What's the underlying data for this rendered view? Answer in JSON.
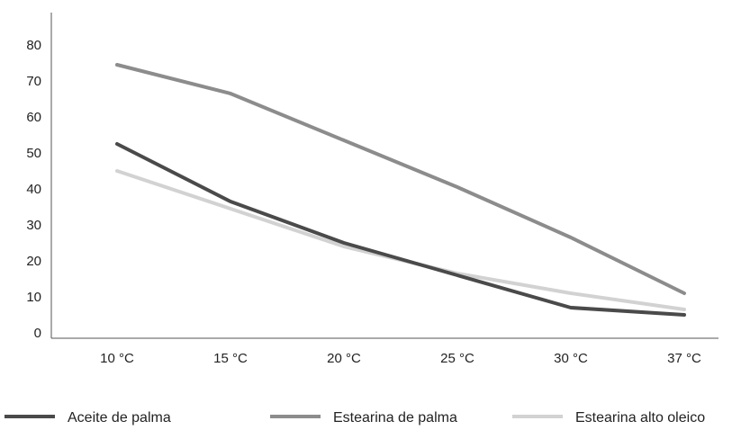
{
  "chart_data": {
    "type": "line",
    "title": "",
    "xlabel": "",
    "ylabel": "",
    "categories": [
      "10 °C",
      "15 °C",
      "20 °C",
      "25 °C",
      "30 °C",
      "37 °C"
    ],
    "y_ticks": [
      "0",
      "10",
      "20",
      "30",
      "40",
      "50",
      "60",
      "70",
      "80"
    ],
    "ylim": [
      0,
      85
    ],
    "grid": false,
    "legend_position": "bottom",
    "series": [
      {
        "name": "Aceite de palma",
        "values": [
          52.5,
          36.5,
          25,
          16,
          7,
          5
        ],
        "color": "#4a4a4a"
      },
      {
        "name": "Estearina de palma",
        "values": [
          74.5,
          66.5,
          53.5,
          40.5,
          26.5,
          11
        ],
        "color": "#8c8c8c"
      },
      {
        "name": "Estearina alto oleico",
        "values": [
          45,
          34.5,
          24,
          16.5,
          11,
          6.5
        ],
        "color": "#d2d2d2"
      }
    ]
  }
}
